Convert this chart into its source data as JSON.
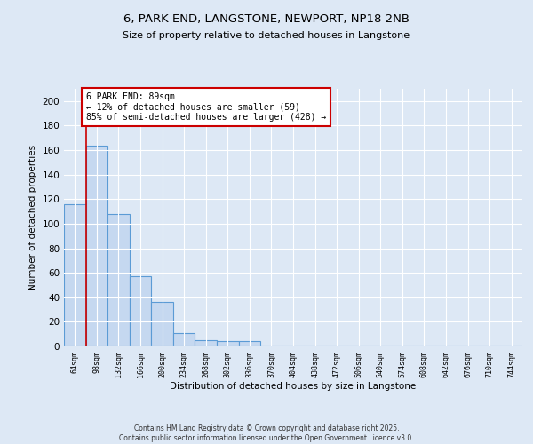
{
  "title_line1": "6, PARK END, LANGSTONE, NEWPORT, NP18 2NB",
  "title_line2": "Size of property relative to detached houses in Langstone",
  "xlabel": "Distribution of detached houses by size in Langstone",
  "ylabel": "Number of detached properties",
  "categories": [
    "64sqm",
    "98sqm",
    "132sqm",
    "166sqm",
    "200sqm",
    "234sqm",
    "268sqm",
    "302sqm",
    "336sqm",
    "370sqm",
    "404sqm",
    "438sqm",
    "472sqm",
    "506sqm",
    "540sqm",
    "574sqm",
    "608sqm",
    "642sqm",
    "676sqm",
    "710sqm",
    "744sqm"
  ],
  "values": [
    116,
    164,
    108,
    57,
    36,
    11,
    5,
    4,
    4,
    0,
    0,
    0,
    0,
    0,
    0,
    0,
    0,
    0,
    0,
    0,
    0
  ],
  "bar_color": "#c5d8f0",
  "bar_edge_color": "#5b9bd5",
  "annotation_box_text": "6 PARK END: 89sqm\n← 12% of detached houses are smaller (59)\n85% of semi-detached houses are larger (428) →",
  "annotation_box_color": "#ffffff",
  "annotation_box_edge": "#cc0000",
  "vline_color": "#cc0000",
  "ylim": [
    0,
    210
  ],
  "yticks": [
    0,
    20,
    40,
    60,
    80,
    100,
    120,
    140,
    160,
    180,
    200
  ],
  "footer_line1": "Contains HM Land Registry data © Crown copyright and database right 2025.",
  "footer_line2": "Contains public sector information licensed under the Open Government Licence v3.0.",
  "bg_color": "#dde8f5",
  "plot_bg_color": "#dde8f5",
  "grid_color": "#ffffff"
}
